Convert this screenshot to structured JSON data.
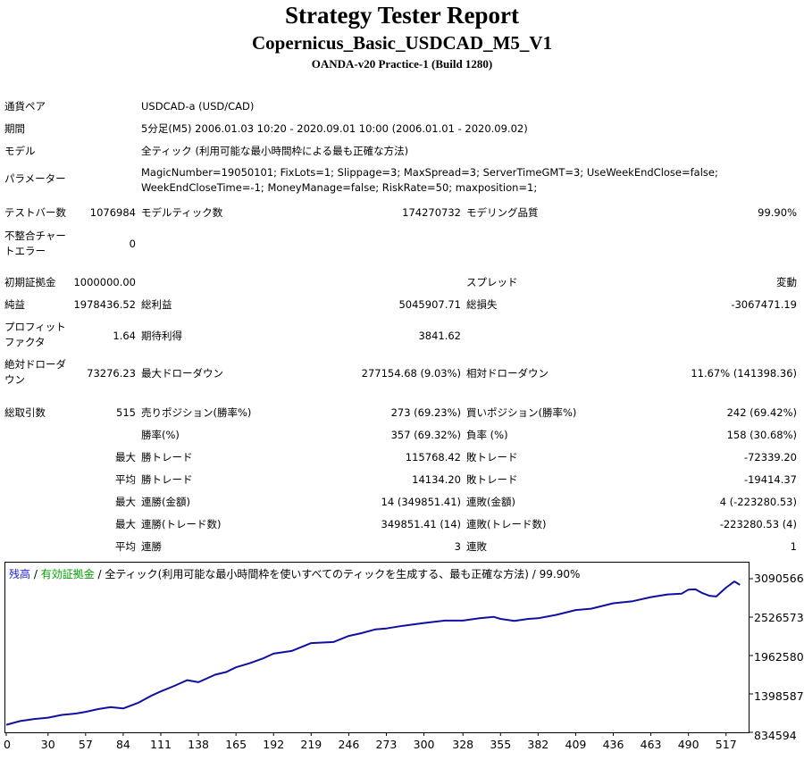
{
  "header": {
    "title": "Strategy Tester Report",
    "subtitle": "Copernicus_Basic_USDCAD_M5_V1",
    "broker": "OANDA-v20 Practice-1 (Build 1280)"
  },
  "settings": {
    "symbol_label": "通貨ペア",
    "symbol_value": "USDCAD-a (USD/CAD)",
    "period_label": "期間",
    "period_value": "5分足(M5) 2006.01.03 10:20 - 2020.09.01 10:00 (2006.01.01 - 2020.09.02)",
    "model_label": "モデル",
    "model_value": "全ティック (利用可能な最小時間枠による最も正確な方法)",
    "params_label": "パラメーター",
    "params_value": "MagicNumber=19050101; FixLots=1; Slippage=3; MaxSpread=3; ServerTimeGMT=3; UseWeekEndClose=false; WeekEndCloseTime=-1; MoneyManage=false; RiskRate=50; maxposition=1;"
  },
  "test": {
    "bars_label": "テストバー数",
    "bars_value": "1076984",
    "ticks_label": "モデルティック数",
    "ticks_value": "174270732",
    "quality_label": "モデリング品質",
    "quality_value": "99.90%",
    "errors_label": "不整合チャートエラー",
    "errors_value": "0"
  },
  "stats": {
    "deposit_label": "初期証拠金",
    "deposit_value": "1000000.00",
    "spread_label": "スプレッド",
    "spread_value": "変動",
    "net_label": "純益",
    "net_value": "1978436.52",
    "gross_profit_label": "総利益",
    "gross_profit_value": "5045907.71",
    "gross_loss_label": "総損失",
    "gross_loss_value": "-3067471.19",
    "pf_label": "プロフィットファクタ",
    "pf_value": "1.64",
    "payoff_label": "期待利得",
    "payoff_value": "3841.62",
    "abs_dd_label": "絶対ドローダウン",
    "abs_dd_value": "73276.23",
    "max_dd_label": "最大ドローダウン",
    "max_dd_value": "277154.68 (9.03%)",
    "rel_dd_label": "相対ドローダウン",
    "rel_dd_value": "11.67% (141398.36)",
    "trades_label": "総取引数",
    "trades_value": "515",
    "short_label": "売りポジション(勝率%)",
    "short_value": "273 (69.23%)",
    "long_label": "買いポジション(勝率%)",
    "long_value": "242 (69.42%)",
    "win_label": "勝率(%)",
    "win_value": "357 (69.32%)",
    "loss_label": "負率 (%)",
    "loss_value": "158 (30.68%)",
    "max_label": "最大",
    "avg_label": "平均",
    "largest_win_label": "勝トレード",
    "largest_win_value": "115768.42",
    "largest_loss_label": "敗トレード",
    "largest_loss_value": "-72339.20",
    "avg_win_label": "勝トレード",
    "avg_win_value": "14134.20",
    "avg_loss_label": "敗トレード",
    "avg_loss_value": "-19414.37",
    "cons_win_amt_label": "連勝(金額)",
    "cons_win_amt_value": "14 (349851.41)",
    "cons_loss_amt_label": "連敗(金額)",
    "cons_loss_amt_value": "4 (-223280.53)",
    "cons_win_cnt_label": "連勝(トレード数)",
    "cons_win_cnt_value": "349851.41 (14)",
    "cons_loss_cnt_label": "連敗(トレード数)",
    "cons_loss_cnt_value": "-223280.53 (4)",
    "avg_cons_win_label": "連勝",
    "avg_cons_win_value": "3",
    "avg_cons_loss_label": "連敗",
    "avg_cons_loss_value": "1"
  },
  "chart_data": {
    "type": "line",
    "legend_balance": "残高",
    "legend_sep1": " / ",
    "legend_equity": "有効証拠金",
    "legend_rest": " / 全ティック(利用可能な最小時間枠を使いすべてのティックを生成する、最も正確な方法) / 99.90%",
    "colors": {
      "balance": "#1a1ae0",
      "equity": "#00a000",
      "line": "#1010a0"
    },
    "x_ticks": [
      "0",
      "30",
      "57",
      "84",
      "111",
      "138",
      "165",
      "192",
      "219",
      "246",
      "273",
      "300",
      "328",
      "355",
      "382",
      "409",
      "436",
      "463",
      "490",
      "517"
    ],
    "y_ticks": [
      "3090566",
      "2526573",
      "1962580",
      "1398587",
      "834594"
    ],
    "ylim": [
      834594,
      3090566
    ],
    "xlim": [
      0,
      530
    ],
    "series": [
      {
        "x": [
          0,
          10,
          20,
          30,
          40,
          50,
          57,
          66,
          75,
          84,
          95,
          105,
          111,
          120,
          130,
          138,
          150,
          158,
          165,
          175,
          185,
          192,
          205,
          219,
          235,
          246,
          255,
          265,
          273,
          285,
          300,
          315,
          328,
          340,
          350,
          355,
          365,
          375,
          382,
          395,
          409,
          420,
          436,
          450,
          463,
          475,
          485,
          490,
          495,
          500,
          505,
          510,
          517,
          523,
          527
        ],
        "y": [
          945000,
          1000000,
          1030000,
          1050000,
          1090000,
          1110000,
          1135000,
          1175000,
          1205000,
          1185000,
          1270000,
          1380000,
          1435000,
          1510000,
          1600000,
          1570000,
          1680000,
          1720000,
          1790000,
          1850000,
          1925000,
          1990000,
          2030000,
          2145000,
          2160000,
          2250000,
          2290000,
          2345000,
          2360000,
          2400000,
          2440000,
          2475000,
          2475000,
          2510000,
          2530000,
          2500000,
          2470000,
          2500000,
          2510000,
          2560000,
          2630000,
          2650000,
          2730000,
          2760000,
          2820000,
          2860000,
          2870000,
          2930000,
          2935000,
          2880000,
          2840000,
          2830000,
          2960000,
          3050000,
          3000000
        ]
      }
    ]
  }
}
